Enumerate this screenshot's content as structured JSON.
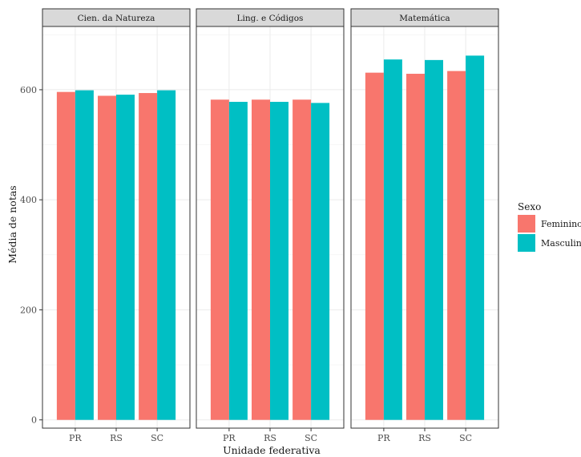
{
  "chart_data": {
    "type": "bar",
    "facet_by": "Área",
    "panels": [
      {
        "title": "Cien. da Natureza",
        "categories": [
          "PR",
          "RS",
          "SC"
        ],
        "series": [
          {
            "name": "Feminino",
            "values": [
              596,
              589,
              594
            ]
          },
          {
            "name": "Masculino",
            "values": [
              599,
              591,
              599
            ]
          }
        ]
      },
      {
        "title": "Ling. e Códigos",
        "categories": [
          "PR",
          "RS",
          "SC"
        ],
        "series": [
          {
            "name": "Feminino",
            "values": [
              582,
              582,
              582
            ]
          },
          {
            "name": "Masculino",
            "values": [
              578,
              578,
              576
            ]
          }
        ]
      },
      {
        "title": "Matemática",
        "categories": [
          "PR",
          "RS",
          "SC"
        ],
        "series": [
          {
            "name": "Feminino",
            "values": [
              631,
              629,
              634
            ]
          },
          {
            "name": "Masculino",
            "values": [
              655,
              654,
              662
            ]
          }
        ]
      }
    ],
    "xlabel": "Unidade federativa",
    "ylabel": "Média de notas",
    "ylim": [
      -15,
      715
    ],
    "yticks": [
      0,
      200,
      400,
      600
    ],
    "grid": true,
    "legend": {
      "title": "Sexo",
      "placement": "right",
      "entries": [
        {
          "label": "Feminino",
          "color": "#F8766D"
        },
        {
          "label": "Masculino",
          "color": "#00BFC4"
        }
      ]
    },
    "colors": {
      "Feminino": "#F8766D",
      "Masculino": "#00BFC4"
    }
  }
}
